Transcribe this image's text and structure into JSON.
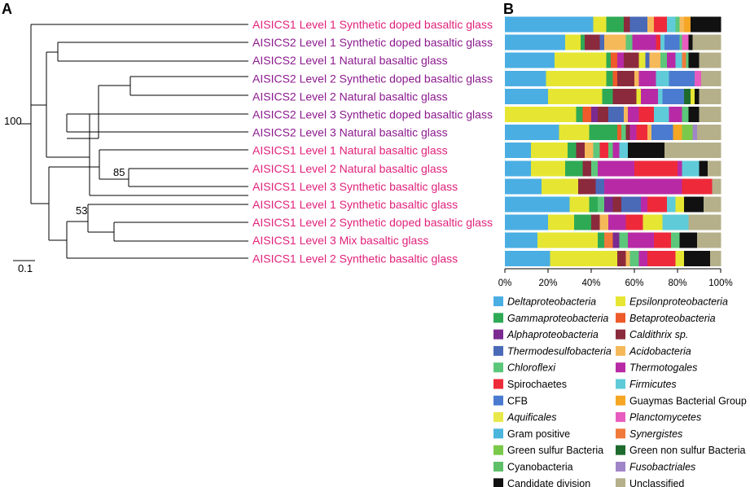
{
  "panels": {
    "a": "A",
    "b": "B"
  },
  "tree": {
    "scale_label": "0.1",
    "bootstrap": {
      "root": "100",
      "clade_a": "85",
      "clade_b": "53"
    }
  },
  "chart_data": {
    "type": "stacked-bar-horizontal",
    "title": "",
    "xlabel": "",
    "ylabel": "",
    "xlim": [
      0,
      100
    ],
    "x_ticks": [
      "0%",
      "20%",
      "40%",
      "60%",
      "80%",
      "100%"
    ],
    "samples": [
      {
        "label": "AISICS1 Level 1 Synthetic doped basaltic glass",
        "color": "#e0217b"
      },
      {
        "label": "AISICS2 Level 1 Synthetic doped basaltic glass",
        "color": "#8b1a8e"
      },
      {
        "label": "AISICS2 Level 1 Natural basaltic glass",
        "color": "#8b1a8e"
      },
      {
        "label": "AISICS2 Level 2 Synthetic doped basaltic glass",
        "color": "#8b1a8e"
      },
      {
        "label": "AISICS2 Level 2 Natural basaltic glass",
        "color": "#8b1a8e"
      },
      {
        "label": "AISICS2 Level 3 Synthetic doped basaltic glass",
        "color": "#8b1a8e"
      },
      {
        "label": "AISICS2 Level 3 Natural basaltic glass",
        "color": "#8b1a8e"
      },
      {
        "label": "AISICS1 Level 1 Natural basaltic glass",
        "color": "#e0217b"
      },
      {
        "label": "AISICS1  Level 2 Natural basaltic glass",
        "color": "#e0217b"
      },
      {
        "label": "AISICS1 Level 3 Synthetic basaltic glass",
        "color": "#e0217b"
      },
      {
        "label": "AISICS1 Level 1 Synthetic basaltic glass",
        "color": "#e0217b"
      },
      {
        "label": "AISICS1 Level 2 Synthetic doped basaltic glass",
        "color": "#e0217b"
      },
      {
        "label": "AISICS1 Level 3 Mix basaltic glass",
        "color": "#e0217b"
      },
      {
        "label": "AISICS1 Level 2 Synthetic basaltic glass",
        "color": "#e0217b"
      }
    ],
    "taxa": [
      {
        "name": "Deltaproteobacteria",
        "color": "#4aaee3",
        "italic": true
      },
      {
        "name": "Epsilonproteobacteria",
        "color": "#e6e632",
        "italic": true
      },
      {
        "name": "Gammaproteobacteria",
        "color": "#2eaa55",
        "italic": true
      },
      {
        "name": "Betaproteobacteria",
        "color": "#ee5a2a",
        "italic": true
      },
      {
        "name": "Alphaproteobacteria",
        "color": "#7b2a90",
        "italic": true
      },
      {
        "name": "Caldithrix sp.",
        "color": "#8b2a3c",
        "italic": true
      },
      {
        "name": "Thermodesulfobacteria",
        "color": "#4a6ab8",
        "italic": true
      },
      {
        "name": "Acidobacteria",
        "color": "#f5b95a",
        "italic": true
      },
      {
        "name": "Chloroflexi",
        "color": "#5cc77a",
        "italic": true
      },
      {
        "name": "Thermotogales",
        "color": "#b82aa5",
        "italic": true
      },
      {
        "name": "Spirochaetes",
        "color": "#ee2a3a",
        "italic": false
      },
      {
        "name": "Firmicutes",
        "color": "#5fcbd8",
        "italic": true
      },
      {
        "name": "CFB",
        "color": "#4a7bd0",
        "italic": false
      },
      {
        "name": "Guaymas Bacterial Group",
        "color": "#f5a623",
        "italic": false
      },
      {
        "name": "Aquificales",
        "color": "#e8e84a",
        "italic": true
      },
      {
        "name": "Planctomycetes",
        "color": "#e85cbf",
        "italic": true
      },
      {
        "name": "Gram positive",
        "color": "#4ab5dd",
        "italic": false
      },
      {
        "name": "Synergistes",
        "color": "#f07a3a",
        "italic": true
      },
      {
        "name": "Green sulfur Bacteria",
        "color": "#7ac94a",
        "italic": false
      },
      {
        "name": "Green non sulfur Bacteria",
        "color": "#1e6b2e",
        "italic": false
      },
      {
        "name": "Cyanobacteria",
        "color": "#5fc06a",
        "italic": false
      },
      {
        "name": "Fusobactriales",
        "color": "#a085c8",
        "italic": true
      },
      {
        "name": "Candidate division",
        "color": "#111111",
        "italic": false
      },
      {
        "name": "Unclassified",
        "color": "#b5b08a",
        "italic": false
      }
    ],
    "rows": [
      [
        [
          "Deltaproteobacteria",
          41
        ],
        [
          "Epsilonproteobacteria",
          6
        ],
        [
          "Gammaproteobacteria",
          8
        ],
        [
          "Caldithrix sp.",
          3
        ],
        [
          "Thermodesulfobacteria",
          8
        ],
        [
          "Acidobacteria",
          3
        ],
        [
          "Spirochaetes",
          6
        ],
        [
          "Firmicutes",
          4
        ],
        [
          "Chloroflexi",
          2
        ],
        [
          "Acidobacteria",
          2
        ],
        [
          "Guaymas Bacterial Group",
          3
        ],
        [
          "Candidate division",
          14
        ]
      ],
      [
        [
          "Deltaproteobacteria",
          28
        ],
        [
          "Epsilonproteobacteria",
          7
        ],
        [
          "Gammaproteobacteria",
          2
        ],
        [
          "Caldithrix sp.",
          7
        ],
        [
          "Thermodesulfobacteria",
          2
        ],
        [
          "Acidobacteria",
          10
        ],
        [
          "Chloroflexi",
          3
        ],
        [
          "Thermotogales",
          11
        ],
        [
          "Spirochaetes",
          2
        ],
        [
          "Firmicutes",
          2
        ],
        [
          "CFB",
          7
        ],
        [
          "Chloroflexi",
          1
        ],
        [
          "Planctomycetes",
          3
        ],
        [
          "Candidate division",
          2
        ],
        [
          "Unclassified",
          13
        ]
      ],
      [
        [
          "Deltaproteobacteria",
          23
        ],
        [
          "Epsilonproteobacteria",
          24
        ],
        [
          "Gammaproteobacteria",
          2
        ],
        [
          "Betaproteobacteria",
          3
        ],
        [
          "Thermotogales",
          3
        ],
        [
          "Caldithrix sp.",
          7
        ],
        [
          "Epsilonproteobacteria",
          3
        ],
        [
          "Thermodesulfobacteria",
          2
        ],
        [
          "Acidobacteria",
          5
        ],
        [
          "Chloroflexi",
          3
        ],
        [
          "Thermotogales",
          4
        ],
        [
          "Firmicutes",
          3
        ],
        [
          "Synergistes",
          2
        ],
        [
          "Chloroflexi",
          1
        ],
        [
          "Candidate division",
          5
        ],
        [
          "Unclassified",
          10
        ]
      ],
      [
        [
          "Deltaproteobacteria",
          19
        ],
        [
          "Epsilonproteobacteria",
          28
        ],
        [
          "Gammaproteobacteria",
          3
        ],
        [
          "Betaproteobacteria",
          2
        ],
        [
          "Caldithrix sp.",
          8
        ],
        [
          "Acidobacteria",
          2
        ],
        [
          "Thermotogales",
          8
        ],
        [
          "Firmicutes",
          6
        ],
        [
          "CFB",
          12
        ],
        [
          "Planctomycetes",
          3
        ],
        [
          "Unclassified",
          9
        ]
      ],
      [
        [
          "Deltaproteobacteria",
          20
        ],
        [
          "Epsilonproteobacteria",
          25
        ],
        [
          "Gammaproteobacteria",
          5
        ],
        [
          "Caldithrix sp.",
          11
        ],
        [
          "Epsilonproteobacteria",
          2
        ],
        [
          "Thermotogales",
          8
        ],
        [
          "Firmicutes",
          2
        ],
        [
          "CFB",
          10
        ],
        [
          "Green non sulfur Bacteria",
          3
        ],
        [
          "Epsilonproteobacteria",
          2
        ],
        [
          "Candidate division",
          2
        ],
        [
          "Unclassified",
          10
        ]
      ],
      [
        [
          "Deltaproteobacteria",
          0
        ],
        [
          "Epsilonproteobacteria",
          33
        ],
        [
          "Gammaproteobacteria",
          3
        ],
        [
          "Betaproteobacteria",
          4
        ],
        [
          "Alphaproteobacteria",
          3
        ],
        [
          "Caldithrix sp.",
          5
        ],
        [
          "Thermodesulfobacteria",
          7
        ],
        [
          "Acidobacteria",
          2
        ],
        [
          "Thermotogales",
          5
        ],
        [
          "Spirochaetes",
          7
        ],
        [
          "Firmicutes",
          7
        ],
        [
          "Thermotogales",
          6
        ],
        [
          "Chloroflexi",
          3
        ],
        [
          "Candidate division",
          5
        ],
        [
          "Unclassified",
          10
        ]
      ],
      [
        [
          "Deltaproteobacteria",
          25
        ],
        [
          "Epsilonproteobacteria",
          14
        ],
        [
          "Gammaproteobacteria",
          13
        ],
        [
          "Betaproteobacteria",
          2
        ],
        [
          "Chloroflexi",
          2
        ],
        [
          "Caldithrix sp.",
          2
        ],
        [
          "Thermotogales",
          3
        ],
        [
          "Spirochaetes",
          5
        ],
        [
          "Acidobacteria",
          2
        ],
        [
          "CFB",
          10
        ],
        [
          "Guaymas Bacterial Group",
          4
        ],
        [
          "Green sulfur Bacteria",
          5
        ],
        [
          "Fusobactriales",
          2
        ],
        [
          "Unclassified",
          11
        ]
      ],
      [
        [
          "Deltaproteobacteria",
          12
        ],
        [
          "Epsilonproteobacteria",
          17
        ],
        [
          "Gammaproteobacteria",
          4
        ],
        [
          "Caldithrix sp.",
          4
        ],
        [
          "Acidobacteria",
          4
        ],
        [
          "Chloroflexi",
          3
        ],
        [
          "Spirochaetes",
          4
        ],
        [
          "Chloroflexi",
          2
        ],
        [
          "Thermotogales",
          3
        ],
        [
          "Firmicutes",
          4
        ],
        [
          "Candidate division",
          17
        ],
        [
          "Unclassified",
          26
        ]
      ],
      [
        [
          "Deltaproteobacteria",
          12
        ],
        [
          "Epsilonproteobacteria",
          16
        ],
        [
          "Gammaproteobacteria",
          8
        ],
        [
          "Caldithrix sp.",
          4
        ],
        [
          "Chloroflexi",
          3
        ],
        [
          "Thermotogales",
          17
        ],
        [
          "Spirochaetes",
          20
        ],
        [
          "Thermotogales",
          2
        ],
        [
          "Firmicutes",
          8
        ],
        [
          "Candidate division",
          4
        ],
        [
          "Unclassified",
          6
        ]
      ],
      [
        [
          "Deltaproteobacteria",
          17
        ],
        [
          "Epsilonproteobacteria",
          17
        ],
        [
          "Caldithrix sp.",
          8
        ],
        [
          "Thermodesulfobacteria",
          4
        ],
        [
          "Thermotogales",
          36
        ],
        [
          "Spirochaetes",
          14
        ],
        [
          "Unclassified",
          4
        ]
      ],
      [
        [
          "Deltaproteobacteria",
          30
        ],
        [
          "Epsilonproteobacteria",
          9
        ],
        [
          "Gammaproteobacteria",
          4
        ],
        [
          "Chloroflexi",
          3
        ],
        [
          "Alphaproteobacteria",
          4
        ],
        [
          "Caldithrix sp.",
          4
        ],
        [
          "Thermodesulfobacteria",
          9
        ],
        [
          "Thermotogales",
          3
        ],
        [
          "Spirochaetes",
          9
        ],
        [
          "Firmicutes",
          4
        ],
        [
          "Epsilonproteobacteria",
          4
        ],
        [
          "Candidate division",
          9
        ],
        [
          "Unclassified",
          8
        ]
      ],
      [
        [
          "Deltaproteobacteria",
          20
        ],
        [
          "Epsilonproteobacteria",
          12
        ],
        [
          "Gammaproteobacteria",
          8
        ],
        [
          "Caldithrix sp.",
          4
        ],
        [
          "Acidobacteria",
          4
        ],
        [
          "Thermotogales",
          8
        ],
        [
          "Spirochaetes",
          8
        ],
        [
          "Epsilonproteobacteria",
          9
        ],
        [
          "Firmicutes",
          12
        ],
        [
          "Unclassified",
          15
        ]
      ],
      [
        [
          "Deltaproteobacteria",
          15
        ],
        [
          "Epsilonproteobacteria",
          28
        ],
        [
          "Gammaproteobacteria",
          3
        ],
        [
          "Synergistes",
          4
        ],
        [
          "Alphaproteobacteria",
          3
        ],
        [
          "Chloroflexi",
          4
        ],
        [
          "Thermotogales",
          12
        ],
        [
          "Spirochaetes",
          8
        ],
        [
          "Chloroflexi",
          4
        ],
        [
          "Candidate division",
          8
        ],
        [
          "Unclassified",
          11
        ]
      ],
      [
        [
          "Deltaproteobacteria",
          21
        ],
        [
          "Epsilonproteobacteria",
          31
        ],
        [
          "Caldithrix sp.",
          4
        ],
        [
          "Acidobacteria",
          2
        ],
        [
          "Chloroflexi",
          4
        ],
        [
          "Thermotogales",
          4
        ],
        [
          "Spirochaetes",
          13
        ],
        [
          "Epsilonproteobacteria",
          4
        ],
        [
          "Candidate division",
          12
        ],
        [
          "Unclassified",
          5
        ]
      ]
    ]
  }
}
